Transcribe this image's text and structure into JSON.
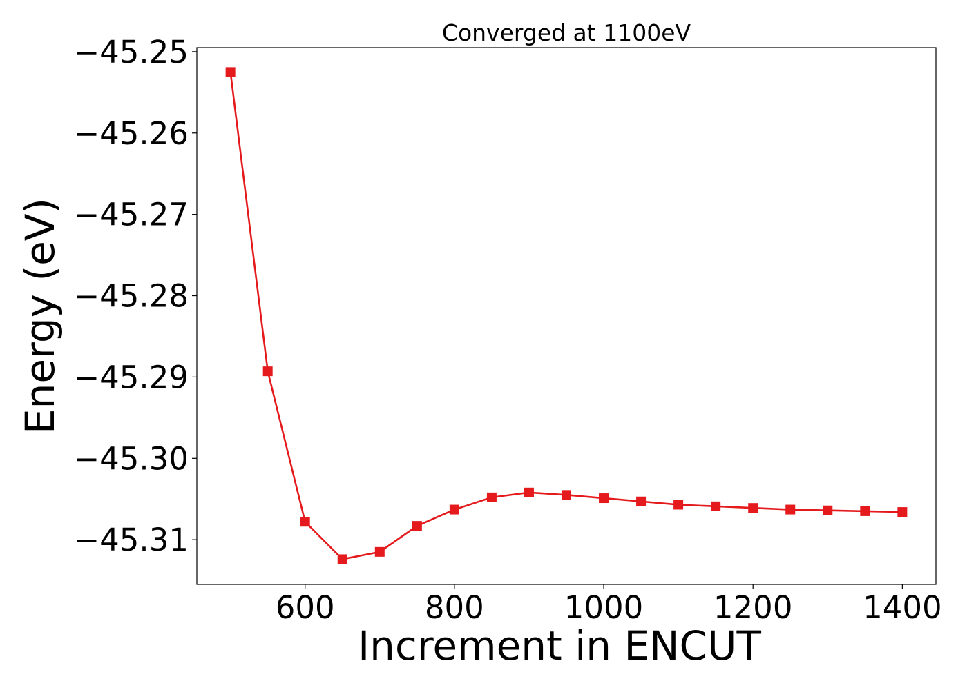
{
  "chart_data": {
    "type": "line",
    "title": "Converged at 1100eV",
    "xlabel": "Increment in ENCUT",
    "ylabel": "Energy (eV)",
    "xlim": [
      455,
      1445
    ],
    "ylim": [
      -45.3155,
      -45.2495
    ],
    "xticks": [
      600,
      800,
      1000,
      1200,
      1400
    ],
    "yticks": [
      -45.25,
      -45.26,
      -45.27,
      -45.28,
      -45.29,
      -45.3,
      -45.31
    ],
    "ytick_labels": [
      "−45.25",
      "−45.26",
      "−45.27",
      "−45.28",
      "−45.29",
      "−45.30",
      "−45.31"
    ],
    "grid": false,
    "series": [
      {
        "color": "#e41a1c",
        "marker": "square",
        "x": [
          500,
          550,
          600,
          650,
          700,
          750,
          800,
          850,
          900,
          950,
          1000,
          1050,
          1100,
          1150,
          1200,
          1250,
          1300,
          1350,
          1400
        ],
        "y": [
          -45.2525,
          -45.2893,
          -45.3078,
          -45.3124,
          -45.3115,
          -45.3083,
          -45.3063,
          -45.3048,
          -45.3042,
          -45.3045,
          -45.3049,
          -45.3053,
          -45.3057,
          -45.3059,
          -45.3061,
          -45.3063,
          -45.3064,
          -45.3065,
          -45.3066
        ]
      }
    ]
  }
}
